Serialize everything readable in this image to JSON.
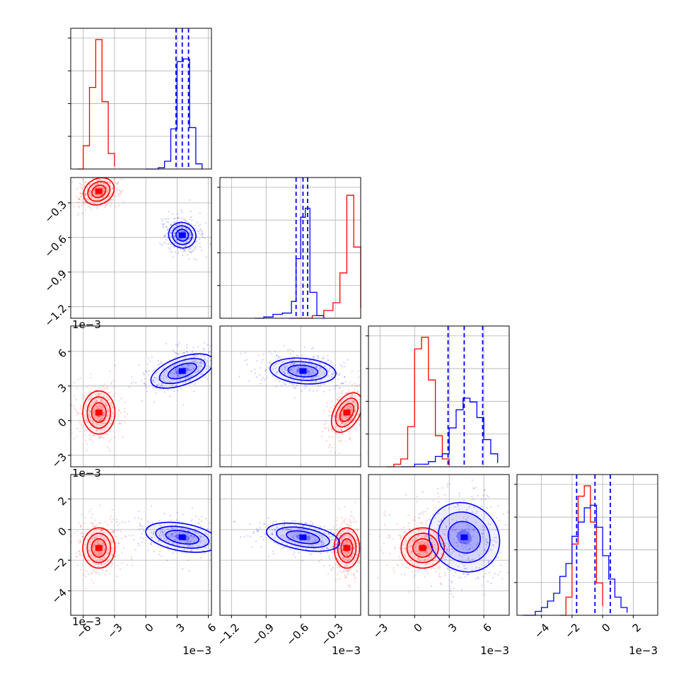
{
  "figure": {
    "kind": "corner-plot"
  },
  "colors": {
    "series_a": "#ff0000",
    "series_b": "#0000ff",
    "grid": "#b0b0b0",
    "frame": "#000000"
  },
  "chart_data": {
    "type": "corner",
    "grid": true,
    "params": [
      {
        "range": [
          -7.2,
          6.3
        ],
        "ticks": [
          -6,
          -3,
          0,
          3,
          6
        ],
        "tick_labels": [
          "−6",
          "−3",
          "0",
          "3",
          "6"
        ],
        "exponent_label": "1e−3"
      },
      {
        "range": [
          -1.3,
          -0.08
        ],
        "ticks": [
          -1.2,
          -0.9,
          -0.6,
          -0.3
        ],
        "tick_labels": [
          "−1.2",
          "−0.9",
          "−0.6",
          "−0.3"
        ],
        "exponent_label": "1e−3"
      },
      {
        "range": [
          -4.0,
          8.2
        ],
        "ticks": [
          -3,
          0,
          3,
          6
        ],
        "tick_labels": [
          "−3",
          "0",
          "3",
          "6"
        ],
        "exponent_label": "1e−3"
      },
      {
        "range": [
          -5.6,
          3.6
        ],
        "ticks": [
          -4,
          -2,
          0,
          2
        ],
        "tick_labels": [
          "−4",
          "−2",
          "0",
          "2"
        ],
        "exponent_label": "1e−3"
      }
    ],
    "series": [
      {
        "color": "#ff0000",
        "means": [
          -4.5,
          -0.2,
          0.7,
          -1.2
        ],
        "sds": [
          0.7,
          0.05,
          0.85,
          0.6
        ],
        "histograms": [
          [
            [
              -6.6,
              0
            ],
            [
              -6.0,
              0.18
            ],
            [
              -5.4,
              0.63
            ],
            [
              -4.8,
              1.0
            ],
            [
              -4.2,
              0.52
            ],
            [
              -3.6,
              0.12
            ],
            [
              -3.0,
              0.02
            ]
          ],
          [
            [
              -0.7,
              0
            ],
            [
              -0.5,
              0.02
            ],
            [
              -0.4,
              0.06
            ],
            [
              -0.32,
              0.12
            ],
            [
              -0.26,
              0.35
            ],
            [
              -0.2,
              0.95
            ],
            [
              -0.14,
              0.55
            ],
            [
              -0.08,
              0.08
            ]
          ],
          [
            [
              -2.4,
              0
            ],
            [
              -1.8,
              0.02
            ],
            [
              -1.2,
              0.06
            ],
            [
              -0.6,
              0.31
            ],
            [
              0.0,
              0.91
            ],
            [
              0.6,
              1.0
            ],
            [
              1.2,
              0.67
            ],
            [
              1.8,
              0.24
            ],
            [
              2.4,
              0.06
            ],
            [
              3.0,
              0.01
            ]
          ],
          [
            [
              -2.8,
              0
            ],
            [
              -2.4,
              0.14
            ],
            [
              -2.0,
              0.55
            ],
            [
              -1.6,
              0.92
            ],
            [
              -1.2,
              1.0
            ],
            [
              -0.8,
              0.72
            ],
            [
              -0.4,
              0.25
            ],
            [
              0.0,
              0.07
            ]
          ]
        ]
      },
      {
        "color": "#0000ff",
        "means": [
          3.5,
          -0.58,
          4.3,
          -0.5
        ],
        "sds": [
          0.6,
          0.05,
          1.3,
          1.1
        ],
        "histograms": [
          [
            [
              0.0,
              0
            ],
            [
              1.2,
              0.01
            ],
            [
              1.8,
              0.06
            ],
            [
              2.4,
              0.31
            ],
            [
              3.0,
              0.83
            ],
            [
              3.6,
              0.85
            ],
            [
              4.2,
              0.32
            ],
            [
              4.8,
              0.04
            ],
            [
              5.4,
              0
            ]
          ],
          [
            [
              -1.0,
              0
            ],
            [
              -0.92,
              0.01
            ],
            [
              -0.84,
              0.03
            ],
            [
              -0.76,
              0.04
            ],
            [
              -0.68,
              0.13
            ],
            [
              -0.64,
              0.46
            ],
            [
              -0.6,
              0.78
            ],
            [
              -0.56,
              0.85
            ],
            [
              -0.52,
              0.2
            ],
            [
              -0.46,
              0.02
            ],
            [
              -0.4,
              0
            ]
          ],
          [
            [
              -1.2,
              0
            ],
            [
              0.0,
              0.02
            ],
            [
              1.2,
              0.04
            ],
            [
              1.8,
              0.08
            ],
            [
              2.4,
              0.1
            ],
            [
              3.0,
              0.3
            ],
            [
              3.6,
              0.44
            ],
            [
              4.2,
              0.53
            ],
            [
              4.8,
              0.5
            ],
            [
              5.4,
              0.38
            ],
            [
              6.0,
              0.21
            ],
            [
              6.6,
              0.1
            ],
            [
              7.2,
              0.03
            ]
          ],
          [
            [
              -5.2,
              0
            ],
            [
              -4.4,
              0.03
            ],
            [
              -4.0,
              0.06
            ],
            [
              -3.6,
              0.11
            ],
            [
              -3.2,
              0.17
            ],
            [
              -2.8,
              0.3
            ],
            [
              -2.4,
              0.4
            ],
            [
              -2.0,
              0.61
            ],
            [
              -1.6,
              0.72
            ],
            [
              -1.2,
              0.83
            ],
            [
              -0.8,
              0.85
            ],
            [
              -0.4,
              0.68
            ],
            [
              0.0,
              0.46
            ],
            [
              0.4,
              0.28
            ],
            [
              0.8,
              0.14
            ],
            [
              1.2,
              0.06
            ],
            [
              1.6,
              0.02
            ]
          ]
        ],
        "quantiles": [
          [
            2.9,
            3.5,
            4.1
          ],
          [
            -0.64,
            -0.58,
            -0.54
          ],
          [
            2.9,
            4.3,
            5.9
          ],
          [
            -1.7,
            -0.5,
            0.5
          ]
        ]
      }
    ]
  }
}
